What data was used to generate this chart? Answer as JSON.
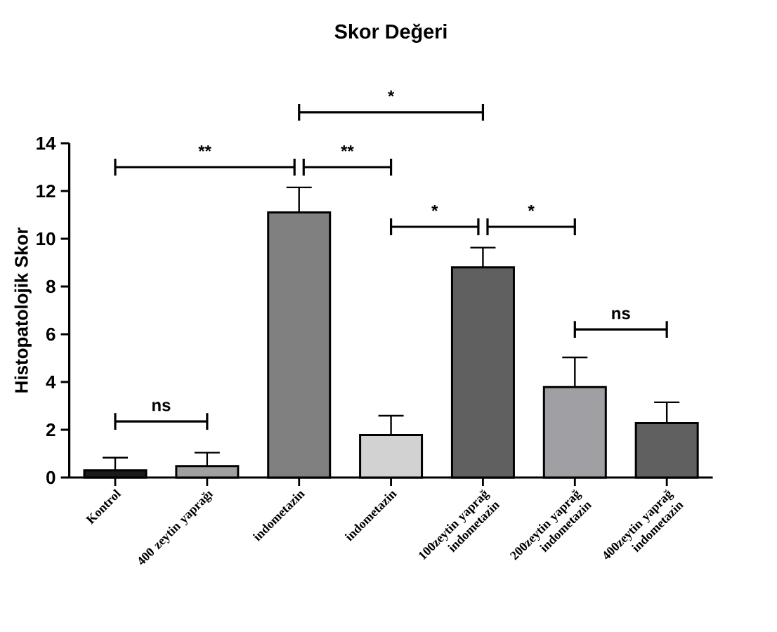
{
  "chart_data": {
    "type": "bar",
    "title": "Skor Değeri",
    "ylabel": "Histopatolojik Skor",
    "categories": [
      "Kontrol",
      "400 zeytin yaprağı",
      "indometazin",
      "indometazin",
      "100zeytin yaprağ indometazin",
      "200zeytin yaprağ indometazin",
      "400zeytin yaprağ indometazin"
    ],
    "values": [
      0.3,
      0.48,
      11.1,
      1.78,
      8.8,
      3.79,
      2.28
    ],
    "errors": [
      [
        0.3,
        0.83
      ],
      [
        0.48,
        1.04
      ],
      [
        11.1,
        12.15
      ],
      [
        1.78,
        2.59
      ],
      [
        8.8,
        9.63
      ],
      [
        3.79,
        5.03
      ],
      [
        2.28,
        3.15
      ]
    ],
    "colors": [
      "#1a1a1a",
      "#a0a0a0",
      "#808080",
      "#d2d2d2",
      "#606060",
      "#a0a0a4",
      "#606060"
    ],
    "ylim": [
      0,
      14
    ],
    "yticks": [
      0,
      2,
      4,
      6,
      8,
      10,
      12,
      14
    ],
    "annotations": [
      "ns",
      "**",
      "**",
      "*",
      "*",
      "*",
      "ns"
    ]
  }
}
